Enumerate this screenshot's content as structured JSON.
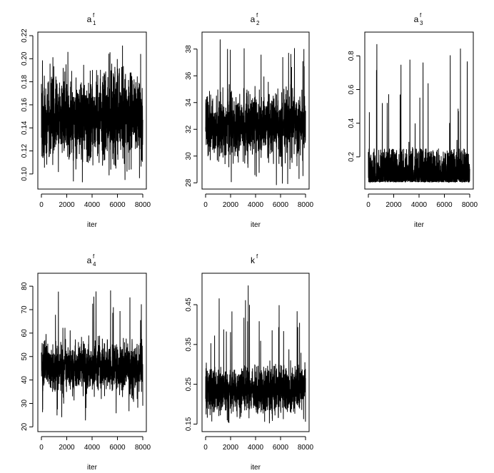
{
  "chart_data": [
    {
      "type": "line",
      "title": {
        "base": "a",
        "sup": "f",
        "sub": "1"
      },
      "xlabel": "iter",
      "xlim": [
        0,
        8000
      ],
      "ylim": [
        0.09,
        0.22
      ],
      "xticks": [
        0,
        2000,
        4000,
        6000,
        8000
      ],
      "xtick_labels": [
        "0",
        "2000",
        "4000",
        "6000",
        "8000"
      ],
      "yticks": [
        0.1,
        0.12,
        0.14,
        0.16,
        0.18,
        0.2,
        0.22
      ],
      "ytick_labels": [
        "0.10",
        "0.12",
        "0.14",
        "0.16",
        "0.18",
        "0.20",
        "0.22"
      ],
      "series": [
        {
          "n": 8000,
          "center": 0.148,
          "band": [
            0.118,
            0.182
          ],
          "min": 0.092,
          "max": 0.215,
          "pattern": "stationary"
        }
      ]
    },
    {
      "type": "line",
      "title": {
        "base": "a",
        "sup": "f",
        "sub": "2"
      },
      "xlabel": "iter",
      "xlim": [
        0,
        8000
      ],
      "ylim": [
        27.8,
        39
      ],
      "xticks": [
        0,
        2000,
        4000,
        6000,
        8000
      ],
      "xtick_labels": [
        "0",
        "2000",
        "4000",
        "6000",
        "8000"
      ],
      "yticks": [
        28,
        30,
        32,
        34,
        36,
        38
      ],
      "ytick_labels": [
        "28",
        "30",
        "32",
        "34",
        "36",
        "38"
      ],
      "series": [
        {
          "n": 8000,
          "center": 32.3,
          "band": [
            30.3,
            34.6
          ],
          "min": 27.8,
          "max": 38.8,
          "pattern": "stationary"
        }
      ]
    },
    {
      "type": "line",
      "title": {
        "base": "a",
        "sup": "f",
        "sub": "3"
      },
      "xlabel": "iter",
      "xlim": [
        0,
        8000
      ],
      "ylim": [
        0.03,
        0.92
      ],
      "xticks": [
        0,
        2000,
        4000,
        6000,
        8000
      ],
      "xtick_labels": [
        "0",
        "2000",
        "4000",
        "6000",
        "8000"
      ],
      "yticks": [
        0.2,
        0.4,
        0.6,
        0.8
      ],
      "ytick_labels": [
        "0.2",
        "0.4",
        "0.6",
        "0.8"
      ],
      "series": [
        {
          "n": 8000,
          "center": 0.12,
          "band": [
            0.06,
            0.25
          ],
          "min": 0.05,
          "max": 0.88,
          "pattern": "skewed"
        }
      ]
    },
    {
      "type": "line",
      "title": {
        "base": "a",
        "sup": "f",
        "sub": "4"
      },
      "xlabel": "iter",
      "xlim": [
        0,
        8000
      ],
      "ylim": [
        19.5,
        84
      ],
      "xticks": [
        0,
        2000,
        4000,
        6000,
        8000
      ],
      "xtick_labels": [
        "0",
        "2000",
        "4000",
        "6000",
        "8000"
      ],
      "yticks": [
        20,
        30,
        40,
        50,
        60,
        70,
        80
      ],
      "ytick_labels": [
        "20",
        "30",
        "40",
        "50",
        "60",
        "70",
        "80"
      ],
      "series": [
        {
          "n": 8000,
          "center": 46,
          "band": [
            37,
            56
          ],
          "min": 22,
          "max": 82,
          "pattern": "stationary"
        }
      ]
    },
    {
      "type": "line",
      "title": {
        "base": "k",
        "sup": "f",
        "sub": ""
      },
      "xlabel": "iter",
      "xlim": [
        0,
        8000
      ],
      "ylim": [
        0.14,
        0.52
      ],
      "xticks": [
        0,
        2000,
        4000,
        6000,
        8000
      ],
      "xtick_labels": [
        "0",
        "2000",
        "4000",
        "6000",
        "8000"
      ],
      "yticks": [
        0.15,
        0.25,
        0.35,
        0.45
      ],
      "ytick_labels": [
        "0.15",
        "0.25",
        "0.35",
        "0.45"
      ],
      "series": [
        {
          "n": 8000,
          "center": 0.235,
          "band": [
            0.195,
            0.3
          ],
          "min": 0.15,
          "max": 0.5,
          "pattern": "stationary"
        }
      ]
    }
  ]
}
